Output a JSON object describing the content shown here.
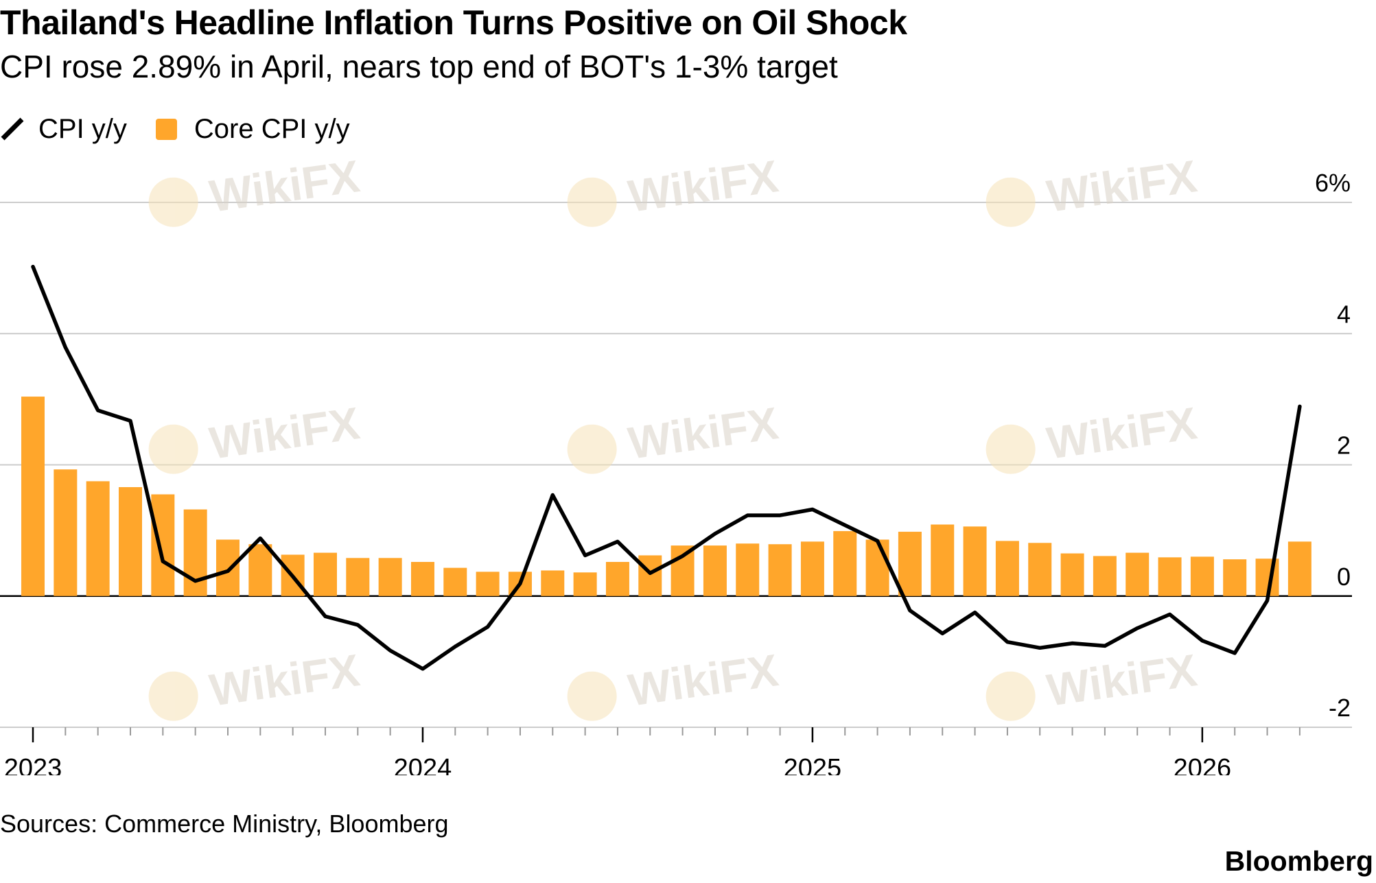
{
  "header": {
    "title": "Thailand's Headline Inflation Turns Positive on Oil Shock",
    "subtitle": "CPI rose 2.89% in April, nears top end of BOT's 1-3% target"
  },
  "legend": {
    "line_label": "CPI y/y",
    "bar_label": "Core CPI y/y"
  },
  "footer": {
    "source": "Sources: Commerce Ministry, Bloomberg",
    "brand": "Bloomberg"
  },
  "colors": {
    "bar": "#ffa62b",
    "line": "#000000",
    "grid": "#cccccc",
    "watermark": "#d9d2c8"
  },
  "chart_data": {
    "type": "bar+line",
    "x_start": "2023-01",
    "x_labels": [
      "2023",
      "2024",
      "2025",
      "2026"
    ],
    "y_ticks": [
      {
        "value": 6,
        "label": "6%"
      },
      {
        "value": 4,
        "label": "4"
      },
      {
        "value": 2,
        "label": "2"
      },
      {
        "value": 0,
        "label": "0"
      },
      {
        "value": -2,
        "label": "-2"
      }
    ],
    "ylim": [
      -2,
      6
    ],
    "y_axis_side": "right",
    "grid": true,
    "legend_position": "top-left",
    "series": [
      {
        "name": "Core CPI y/y",
        "type": "bar",
        "values": [
          3.04,
          1.93,
          1.75,
          1.66,
          1.55,
          1.32,
          0.86,
          0.79,
          0.63,
          0.66,
          0.58,
          0.58,
          0.52,
          0.43,
          0.37,
          0.37,
          0.39,
          0.36,
          0.52,
          0.62,
          0.77,
          0.77,
          0.8,
          0.79,
          0.83,
          0.99,
          0.86,
          0.98,
          1.09,
          1.06,
          0.84,
          0.81,
          0.65,
          0.61,
          0.66,
          0.59,
          0.6,
          0.56,
          0.57,
          0.83
        ]
      },
      {
        "name": "CPI y/y",
        "type": "line",
        "values": [
          5.02,
          3.79,
          2.83,
          2.67,
          0.53,
          0.23,
          0.38,
          0.88,
          0.3,
          -0.31,
          -0.44,
          -0.83,
          -1.11,
          -0.77,
          -0.47,
          0.19,
          1.54,
          0.62,
          0.83,
          0.35,
          0.61,
          0.95,
          1.23,
          1.23,
          1.32,
          1.08,
          0.84,
          -0.22,
          -0.57,
          -0.25,
          -0.7,
          -0.79,
          -0.72,
          -0.76,
          -0.49,
          -0.28,
          -0.68,
          -0.87,
          -0.07,
          2.89
        ]
      }
    ]
  },
  "watermark_text": "WikiFX"
}
